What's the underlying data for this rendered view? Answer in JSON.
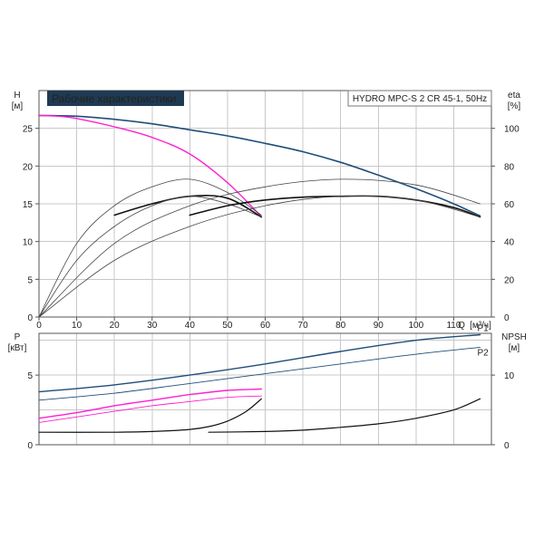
{
  "title_badge": "Рабочие характеристики",
  "model_label": "HYDRO MPC-S 2 CR 45-1, 50Hz",
  "colors": {
    "badge_bg": "#1f3a52",
    "head_dark_blue": "#1f4e79",
    "head_magenta": "#ff1fd0",
    "efficiency_black": "#111111",
    "thin_grey": "#444444",
    "power_pink": "#ff1fd0",
    "power_blue": "#1f4e79",
    "npsh_black": "#111111",
    "series_label_blue": "#2a6a9a"
  },
  "axes": {
    "H": {
      "name": "H",
      "unit": "[м]"
    },
    "eta": {
      "name": "eta",
      "unit": "[%]"
    },
    "Q": {
      "name": "Q",
      "unit": "[м³/ч]"
    },
    "P": {
      "name": "P",
      "unit": "[кВт]"
    },
    "NPSH": {
      "name": "NPSH",
      "unit": "[м]"
    }
  },
  "chart_data": [
    {
      "type": "line",
      "panel": "upper",
      "xlim": [
        0,
        120
      ],
      "ylim_left": [
        0,
        30
      ],
      "ylim_right": [
        0,
        120
      ],
      "x_ticks": [
        0,
        10,
        20,
        30,
        40,
        50,
        60,
        70,
        80,
        90,
        100,
        110
      ],
      "y_ticks_left": [
        0,
        5,
        10,
        15,
        20,
        25
      ],
      "y_ticks_right": [
        0,
        20,
        40,
        60,
        80,
        100
      ],
      "grid": true,
      "series": [
        {
          "id": "h_two_pumps",
          "axis": "left",
          "color_key": "head_dark_blue",
          "width": 1.6,
          "x": [
            0,
            10,
            20,
            30,
            40,
            50,
            60,
            70,
            80,
            90,
            100,
            110,
            117
          ],
          "y": [
            26.7,
            26.6,
            26.2,
            25.6,
            24.8,
            24.0,
            23.0,
            21.9,
            20.5,
            18.8,
            17.0,
            15.0,
            13.4
          ]
        },
        {
          "id": "h_one_pump",
          "axis": "left",
          "color_key": "head_magenta",
          "width": 1.4,
          "x": [
            0,
            5,
            10,
            20,
            30,
            40,
            50,
            59
          ],
          "y": [
            26.7,
            26.6,
            26.3,
            25.2,
            23.8,
            21.6,
            17.8,
            13.3
          ]
        },
        {
          "id": "eta_one_pump_outer",
          "axis": "right",
          "color_key": "thin_grey",
          "width": 0.8,
          "x": [
            0,
            10,
            20,
            30,
            40,
            50,
            59
          ],
          "y": [
            0,
            39,
            59,
            69,
            73,
            66,
            54
          ]
        },
        {
          "id": "eta_one_pump",
          "axis": "right",
          "color_key": "efficiency_black",
          "width": 1.6,
          "x": [
            20,
            30,
            40,
            50,
            59
          ],
          "y": [
            54,
            60,
            64,
            63,
            53
          ]
        },
        {
          "id": "eta_one_pump_inner",
          "axis": "right",
          "color_key": "thin_grey",
          "width": 0.8,
          "x": [
            0,
            10,
            20,
            30,
            40,
            50,
            59
          ],
          "y": [
            0,
            30,
            48,
            59,
            64,
            60,
            53
          ]
        },
        {
          "id": "eta_two_pumps_outer",
          "axis": "right",
          "color_key": "thin_grey",
          "width": 0.8,
          "x": [
            0,
            20,
            40,
            60,
            80,
            100,
            117
          ],
          "y": [
            0,
            39,
            59,
            69,
            73,
            70,
            60
          ]
        },
        {
          "id": "eta_two_pumps",
          "axis": "right",
          "color_key": "efficiency_black",
          "width": 1.6,
          "x": [
            40,
            50,
            60,
            70,
            80,
            90,
            100,
            110,
            117
          ],
          "y": [
            54,
            59,
            62,
            63.5,
            64,
            64,
            62,
            58,
            53
          ]
        },
        {
          "id": "eta_two_pumps_inner",
          "axis": "right",
          "color_key": "thin_grey",
          "width": 0.8,
          "x": [
            0,
            20,
            40,
            60,
            80,
            100,
            117
          ],
          "y": [
            0,
            30,
            48,
            59,
            64,
            62,
            53
          ]
        }
      ]
    },
    {
      "type": "line",
      "panel": "lower",
      "xlim": [
        0,
        120
      ],
      "ylim_left": [
        0,
        8
      ],
      "ylim_right": [
        0,
        16
      ],
      "y_ticks_left": [
        0,
        5
      ],
      "y_ticks_right": [
        0,
        10
      ],
      "grid": true,
      "series": [
        {
          "id": "P1_two",
          "label": "P1",
          "axis": "left",
          "color_key": "power_blue",
          "width": 1.4,
          "x": [
            0,
            20,
            40,
            60,
            80,
            100,
            117
          ],
          "y": [
            3.8,
            4.3,
            5.0,
            5.8,
            6.7,
            7.5,
            7.9
          ]
        },
        {
          "id": "P2_two",
          "label": "P2",
          "axis": "left",
          "color_key": "power_blue",
          "width": 0.9,
          "x": [
            0,
            20,
            40,
            60,
            80,
            100,
            117
          ],
          "y": [
            3.2,
            3.7,
            4.4,
            5.1,
            5.8,
            6.5,
            7.0
          ]
        },
        {
          "id": "P1_one",
          "axis": "left",
          "color_key": "power_pink",
          "width": 1.4,
          "x": [
            0,
            10,
            20,
            30,
            40,
            50,
            59
          ],
          "y": [
            1.9,
            2.3,
            2.8,
            3.2,
            3.6,
            3.9,
            4.0
          ]
        },
        {
          "id": "P2_one",
          "axis": "left",
          "color_key": "power_pink",
          "width": 0.9,
          "x": [
            0,
            10,
            20,
            30,
            40,
            50,
            59
          ],
          "y": [
            1.6,
            2.0,
            2.4,
            2.8,
            3.1,
            3.4,
            3.5
          ]
        },
        {
          "id": "npsh_one",
          "axis": "right",
          "color_key": "npsh_black",
          "width": 1.2,
          "x": [
            0,
            20,
            30,
            40,
            45,
            50,
            55,
            59
          ],
          "y": [
            1.8,
            1.8,
            1.9,
            2.2,
            2.6,
            3.4,
            4.8,
            6.6
          ]
        },
        {
          "id": "npsh_two",
          "axis": "right",
          "color_key": "npsh_black",
          "width": 1.2,
          "x": [
            45,
            60,
            70,
            80,
            90,
            100,
            110,
            117
          ],
          "y": [
            1.8,
            1.9,
            2.1,
            2.5,
            3.0,
            3.8,
            5.0,
            6.6
          ]
        }
      ]
    }
  ]
}
